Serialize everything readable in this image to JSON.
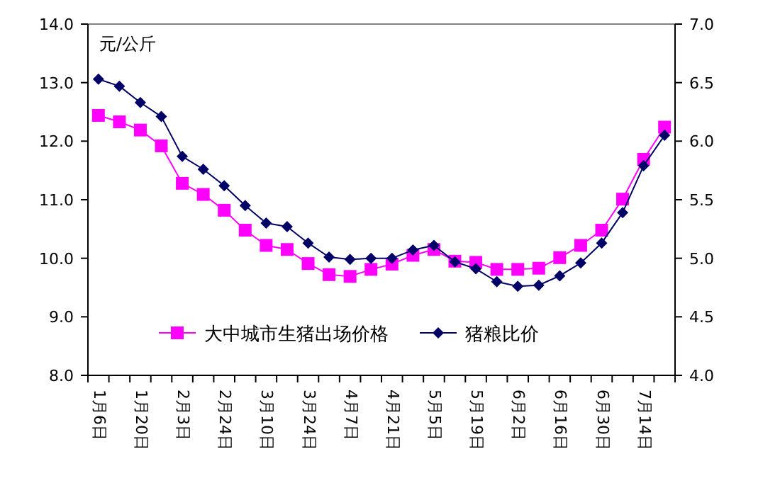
{
  "chart_data": {
    "type": "line",
    "ylabel": "元/公斤",
    "categories": [
      "1月6日",
      null,
      "1月20日",
      null,
      "2月3日",
      null,
      "2月24日",
      null,
      "3月10日",
      null,
      "3月24日",
      null,
      "4月7日",
      null,
      "4月21日",
      null,
      "5月5日",
      null,
      "5月19日",
      null,
      "6月2日",
      null,
      "6月16日",
      null,
      "6月30日",
      null,
      "7月14日",
      null
    ],
    "series": [
      {
        "name": "大中城市生猪出场价格",
        "color": "#ff00ff",
        "marker": "square",
        "values": [
          12.44,
          12.33,
          12.19,
          11.92,
          11.28,
          11.09,
          10.82,
          10.48,
          10.22,
          10.15,
          9.91,
          9.72,
          9.69,
          9.81,
          9.9,
          10.05,
          10.15,
          9.95,
          9.93,
          9.81,
          9.81,
          9.83,
          10.01,
          10.22,
          10.48,
          11.01,
          11.69,
          12.24
        ]
      },
      {
        "name": "猪粮比价",
        "color": "#000066",
        "marker": "diamond",
        "axis": "y2",
        "values": [
          6.53,
          6.47,
          6.33,
          6.21,
          5.87,
          5.76,
          5.62,
          5.45,
          5.3,
          5.27,
          5.13,
          5.01,
          4.99,
          5.0,
          5.0,
          5.07,
          5.11,
          4.97,
          4.91,
          4.8,
          4.76,
          4.77,
          4.85,
          4.96,
          5.13,
          5.39,
          5.79,
          6.05
        ]
      }
    ],
    "ylim": [
      8,
      14
    ],
    "yticks": [
      {
        "value": 8,
        "label": "8.0"
      },
      {
        "value": 9,
        "label": "9.0"
      },
      {
        "value": 10,
        "label": "10.0"
      },
      {
        "value": 11,
        "label": "11.0"
      },
      {
        "value": 12,
        "label": "12.0"
      },
      {
        "value": 13,
        "label": "13.0"
      },
      {
        "value": 14,
        "label": "14.0"
      }
    ],
    "y2lim": [
      4,
      7
    ],
    "y2ticks": [
      {
        "value": 4,
        "label": "4.0"
      },
      {
        "value": 4.5,
        "label": "4.5"
      },
      {
        "value": 5,
        "label": "5.0"
      },
      {
        "value": 5.5,
        "label": "5.5"
      },
      {
        "value": 6,
        "label": "6.0"
      },
      {
        "value": 6.5,
        "label": "6.5"
      },
      {
        "value": 7,
        "label": "7.0"
      }
    ],
    "grid": false,
    "legend": "bottom"
  }
}
